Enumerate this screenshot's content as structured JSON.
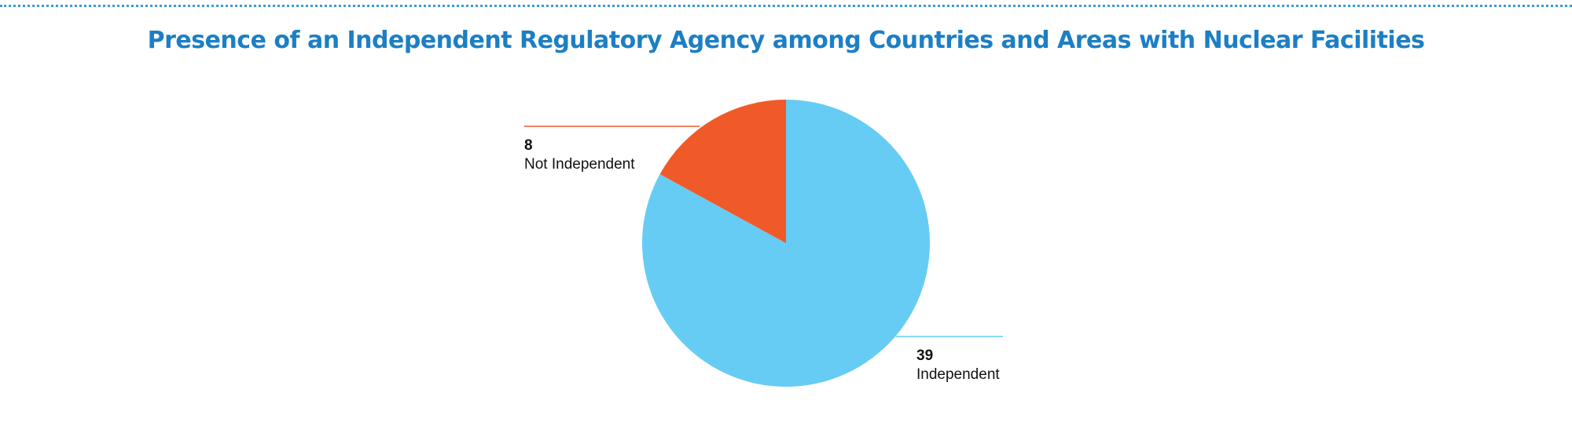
{
  "chart_data": {
    "type": "pie",
    "title": "Presence of an Independent Regulatory Agency among Countries and Areas with Nuclear Facilities",
    "slices": [
      {
        "label": "Independent",
        "value": 39,
        "color": "#66ccf4"
      },
      {
        "label": "Not Independent",
        "value": 8,
        "color": "#f05a28"
      }
    ],
    "start_angle": "12 o'clock",
    "direction": "clockwise",
    "legend": "none"
  }
}
